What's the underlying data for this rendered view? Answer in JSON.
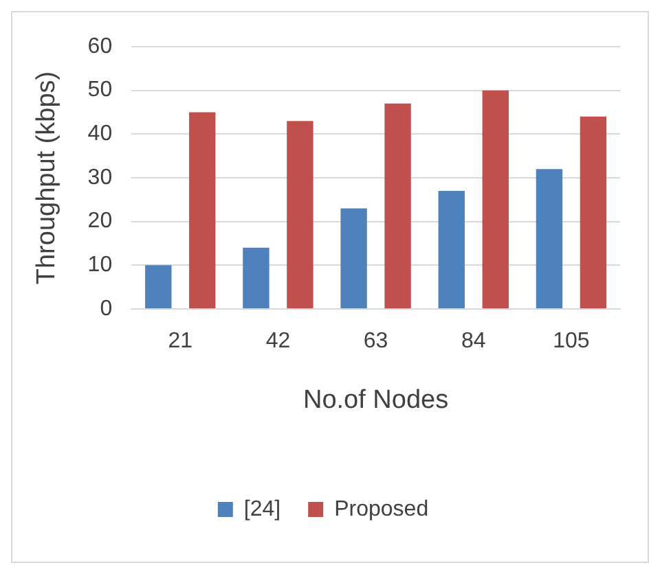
{
  "chart_data": {
    "type": "bar",
    "xlabel": "No.of Nodes",
    "ylabel": "Throughput (kbps)",
    "categories": [
      "21",
      "42",
      "63",
      "84",
      "105"
    ],
    "series": [
      {
        "name": "[24]",
        "color": "#4f81bd",
        "values": [
          10,
          14,
          23,
          27,
          32
        ]
      },
      {
        "name": "Proposed",
        "color": "#c0504d",
        "values": [
          45,
          43,
          47,
          50,
          44
        ]
      }
    ],
    "ylim": [
      0,
      60
    ],
    "yticks": [
      0,
      10,
      20,
      30,
      40,
      50,
      60
    ],
    "grid": "y",
    "legend": "bottom"
  }
}
